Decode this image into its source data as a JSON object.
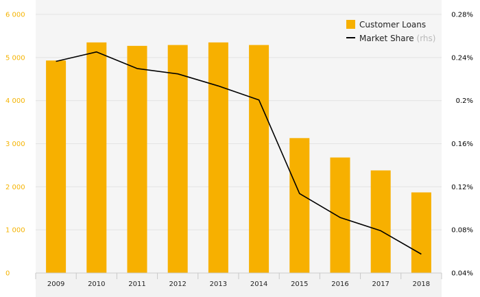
{
  "chart_data": {
    "type": "bar",
    "categories": [
      "2009",
      "2010",
      "2011",
      "2012",
      "2013",
      "2014",
      "2015",
      "2016",
      "2017",
      "2018"
    ],
    "series": [
      {
        "name": "Customer Loans",
        "type": "bar",
        "axis": "left",
        "color": "#f7b000",
        "values": [
          4930,
          5350,
          5270,
          5290,
          5350,
          5290,
          3130,
          2680,
          2380,
          1870
        ]
      },
      {
        "name": "Market Share",
        "name_suffix": "(rhs)",
        "type": "line",
        "axis": "right",
        "color": "#000000",
        "values": [
          0.2364,
          0.2452,
          0.2298,
          0.2248,
          0.2136,
          0.2006,
          0.1137,
          0.0915,
          0.0792,
          0.0575
        ]
      }
    ],
    "y_left": {
      "ylim": [
        0,
        6000
      ],
      "ticks": [
        0,
        1000,
        2000,
        3000,
        4000,
        5000,
        6000
      ],
      "tick_labels": [
        "0",
        "1 000",
        "2 000",
        "3 000",
        "4 000",
        "5 000",
        "6 000"
      ],
      "color": "#f5b300"
    },
    "y_right": {
      "ylim": [
        0.04,
        0.28
      ],
      "ticks": [
        0.04,
        0.08,
        0.12,
        0.16,
        0.2,
        0.24,
        0.28
      ],
      "tick_labels": [
        "0.04%",
        "0.08%",
        "0.12%",
        "0.16%",
        "0.2%",
        "0.24%",
        "0.28%"
      ],
      "color": "#000000"
    },
    "grid": true,
    "legend_position": "top-right"
  }
}
